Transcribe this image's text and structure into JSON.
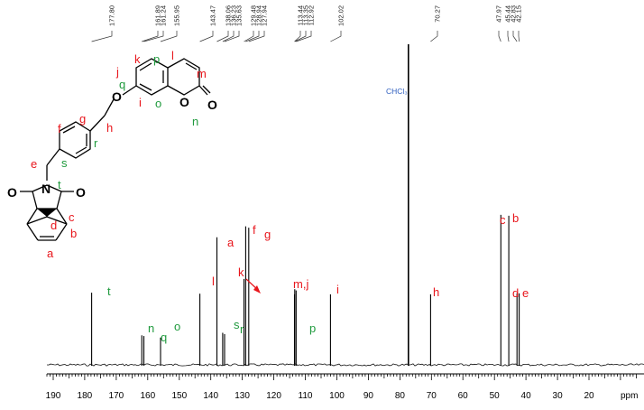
{
  "chart_data": {
    "type": "line",
    "x_axis": {
      "min": 190,
      "max": 10,
      "reversed": true,
      "unit_label": "ppm",
      "major_ticks": [
        190,
        180,
        170,
        160,
        150,
        140,
        130,
        120,
        110,
        100,
        90,
        80,
        70,
        60,
        50,
        40,
        30,
        20
      ]
    },
    "peaks": [
      {
        "shift": 177.8,
        "height": 0.225,
        "label": "t",
        "label_color": "green"
      },
      {
        "shift": 161.89,
        "height": 0.092
      },
      {
        "shift": 161.24,
        "height": 0.09
      },
      {
        "shift": 155.95,
        "height": 0.085,
        "label": "o",
        "label_color": "green"
      },
      {
        "shift": 143.47,
        "height": 0.222,
        "label": "l",
        "label_color": "red"
      },
      {
        "shift": 138.06,
        "height": 0.398,
        "label": "a",
        "label_color": "red"
      },
      {
        "shift": 136.23,
        "height": 0.1
      },
      {
        "shift": 135.63,
        "height": 0.096
      },
      {
        "shift": 129.48,
        "height": 0.268
      },
      {
        "shift": 128.94,
        "height": 0.432
      },
      {
        "shift": 127.94,
        "height": 0.428,
        "label": "g",
        "label_color": "red"
      },
      {
        "shift": 113.44,
        "height": 0.22
      },
      {
        "shift": 113.35,
        "height": 0.236
      },
      {
        "shift": 112.92,
        "height": 0.232
      },
      {
        "shift": 102.02,
        "height": 0.22,
        "label": "i",
        "label_color": "red"
      },
      {
        "shift": 77.3,
        "height": 1.0
      },
      {
        "shift": 70.27,
        "height": 0.22,
        "label": "h",
        "label_color": "red"
      },
      {
        "shift": 47.97,
        "height": 0.468
      },
      {
        "shift": 45.44,
        "height": 0.465
      },
      {
        "shift": 42.83,
        "height": 0.223
      },
      {
        "shift": 42.15,
        "height": 0.223
      }
    ],
    "top_shift_labels": [
      "177.80",
      "161.89",
      "161.24",
      "155.95",
      "143.47",
      "138.06",
      "136.23",
      "135.63",
      "129.48",
      "128.94",
      "127.94",
      "113.44",
      "113.35",
      "112.92",
      "102.02",
      "70.27",
      "47.97",
      "45.44",
      "42.83",
      "42.15"
    ],
    "assignment_labels": {
      "t": "t",
      "n": "n",
      "q": "q",
      "o": "o",
      "l": "l",
      "a": "a",
      "s": "s",
      "r": "r",
      "k": "k",
      "f": "f",
      "g": "g",
      "mj": "m,j",
      "p": "p",
      "i": "i",
      "h": "h",
      "c": "c",
      "b": "b",
      "d": "d",
      "e": "e"
    },
    "solvent_label": "CHCl₃",
    "structure_labels": {
      "atoms": {
        "O1": "O",
        "O2": "O",
        "O3": "O",
        "O4": "O",
        "O5": "O",
        "N": "N"
      },
      "red": {
        "j": "j",
        "k": "k",
        "l": "l",
        "m": "m",
        "i": "i",
        "h": "h",
        "c": "c",
        "b": "b",
        "d": "d",
        "a": "a",
        "e": "e",
        "f": "f",
        "g": "g"
      },
      "green": {
        "p": "p",
        "q": "q",
        "o": "o",
        "n": "n",
        "r": "r",
        "s": "s",
        "t": "t"
      }
    },
    "colors": {
      "red": "#e8161c",
      "green": "#1f9a3d",
      "blue": "#2f5fbf"
    }
  }
}
